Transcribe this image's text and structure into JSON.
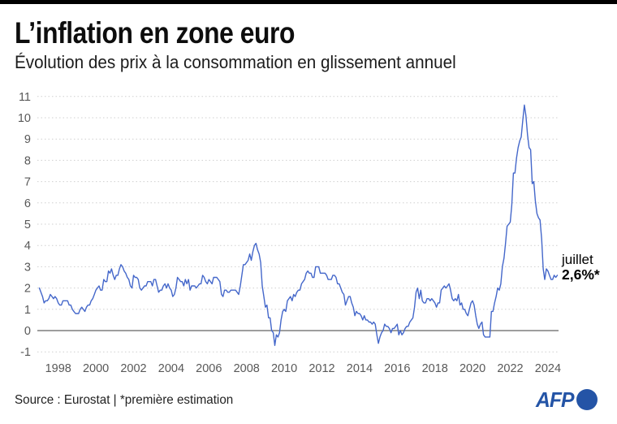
{
  "header": {
    "title": "L’inflation en zone euro",
    "subtitle": "Évolution des prix à la consommation en glissement annuel"
  },
  "annotation": {
    "month_label": "juillet",
    "value_label": "2,6%*"
  },
  "footer": {
    "source_text": "Source : Eurostat | *première estimation"
  },
  "logo": {
    "text": "AFP",
    "color": "#2454a6"
  },
  "colors": {
    "line": "#4467ca",
    "grid": "#cfcfcf",
    "zero_line": "#7f7f7f",
    "tick_text": "#585858"
  },
  "chart_data": {
    "type": "line",
    "title": "L’inflation en zone euro",
    "subtitle": "Évolution des prix à la consommation en glissement annuel",
    "xlabel": "",
    "ylabel": "",
    "ylim": [
      -1,
      11
    ],
    "ytick_step": 1,
    "grid": "dotted-horizontal",
    "legend": "none",
    "x_tick_labels": [
      "1998",
      "2000",
      "2002",
      "2004",
      "2006",
      "2008",
      "2010",
      "2012",
      "2014",
      "2016",
      "2018",
      "2020",
      "2022",
      "2024"
    ],
    "series_name": "Inflation annuelle zone euro (%)",
    "frequency": "monthly",
    "start_year": 1997,
    "start_month": 1,
    "end_label": "juillet 2024 : 2,6%* (première estimation)",
    "values": [
      2.0,
      1.8,
      1.6,
      1.3,
      1.4,
      1.4,
      1.5,
      1.7,
      1.6,
      1.5,
      1.6,
      1.5,
      1.3,
      1.2,
      1.2,
      1.4,
      1.4,
      1.4,
      1.4,
      1.2,
      1.2,
      1.0,
      0.9,
      0.8,
      0.8,
      0.8,
      1.0,
      1.1,
      1.0,
      0.9,
      1.1,
      1.2,
      1.2,
      1.4,
      1.5,
      1.7,
      1.9,
      2.0,
      2.1,
      1.9,
      1.9,
      2.4,
      2.3,
      2.3,
      2.8,
      2.7,
      2.9,
      2.6,
      2.4,
      2.6,
      2.6,
      2.9,
      3.1,
      3.0,
      2.8,
      2.7,
      2.5,
      2.4,
      2.1,
      2.0,
      2.6,
      2.5,
      2.5,
      2.4,
      2.0,
      1.9,
      2.0,
      2.1,
      2.1,
      2.3,
      2.3,
      2.3,
      2.1,
      2.4,
      2.4,
      2.1,
      1.8,
      1.9,
      1.9,
      2.1,
      2.2,
      2.0,
      2.2,
      2.0,
      1.9,
      1.6,
      1.7,
      2.0,
      2.5,
      2.4,
      2.3,
      2.3,
      2.1,
      2.4,
      2.2,
      2.4,
      1.9,
      2.1,
      2.1,
      2.1,
      2.0,
      2.1,
      2.2,
      2.2,
      2.6,
      2.5,
      2.3,
      2.2,
      2.4,
      2.3,
      2.2,
      2.5,
      2.5,
      2.5,
      2.4,
      2.3,
      1.7,
      1.6,
      1.9,
      1.9,
      1.8,
      1.8,
      1.9,
      1.9,
      1.9,
      1.9,
      1.8,
      1.7,
      2.1,
      2.6,
      3.1,
      3.1,
      3.2,
      3.3,
      3.6,
      3.3,
      3.7,
      4.0,
      4.1,
      3.8,
      3.6,
      3.2,
      2.1,
      1.6,
      1.1,
      1.2,
      0.6,
      0.6,
      0.0,
      -0.1,
      -0.7,
      -0.2,
      -0.3,
      -0.1,
      0.5,
      0.9,
      1.0,
      0.9,
      1.4,
      1.5,
      1.6,
      1.4,
      1.7,
      1.6,
      1.8,
      1.9,
      1.9,
      2.2,
      2.3,
      2.4,
      2.7,
      2.8,
      2.7,
      2.7,
      2.5,
      2.5,
      3.0,
      3.0,
      3.0,
      2.7,
      2.7,
      2.7,
      2.7,
      2.6,
      2.4,
      2.4,
      2.4,
      2.6,
      2.6,
      2.5,
      2.2,
      2.2,
      2.0,
      1.8,
      1.7,
      1.2,
      1.4,
      1.6,
      1.6,
      1.3,
      1.1,
      0.7,
      0.9,
      0.8,
      0.8,
      0.7,
      0.5,
      0.7,
      0.5,
      0.5,
      0.4,
      0.4,
      0.3,
      0.4,
      0.3,
      -0.2,
      -0.6,
      -0.3,
      -0.1,
      0.0,
      0.3,
      0.2,
      0.2,
      0.1,
      -0.1,
      0.1,
      0.1,
      0.2,
      0.3,
      -0.2,
      0.0,
      -0.2,
      -0.1,
      0.1,
      0.2,
      0.2,
      0.4,
      0.5,
      0.6,
      1.1,
      1.8,
      2.0,
      1.5,
      1.9,
      1.4,
      1.3,
      1.3,
      1.5,
      1.5,
      1.4,
      1.5,
      1.4,
      1.3,
      1.1,
      1.3,
      1.3,
      1.9,
      2.0,
      2.1,
      2.0,
      2.1,
      2.2,
      1.9,
      1.5,
      1.4,
      1.5,
      1.4,
      1.7,
      1.2,
      1.3,
      1.0,
      1.0,
      0.8,
      0.7,
      1.0,
      1.3,
      1.4,
      1.2,
      0.7,
      0.3,
      0.1,
      0.3,
      0.4,
      -0.2,
      -0.3,
      -0.3,
      -0.3,
      -0.3,
      0.9,
      0.9,
      1.3,
      1.6,
      2.0,
      1.9,
      2.2,
      3.0,
      3.4,
      4.1,
      4.9,
      5.0,
      5.1,
      5.9,
      7.4,
      7.4,
      8.1,
      8.6,
      8.9,
      9.1,
      9.9,
      10.6,
      10.1,
      9.2,
      8.6,
      8.5,
      6.9,
      7.0,
      6.1,
      5.5,
      5.3,
      5.2,
      4.3,
      2.9,
      2.4,
      2.9,
      2.8,
      2.6,
      2.4,
      2.4,
      2.6,
      2.5,
      2.6
    ]
  }
}
